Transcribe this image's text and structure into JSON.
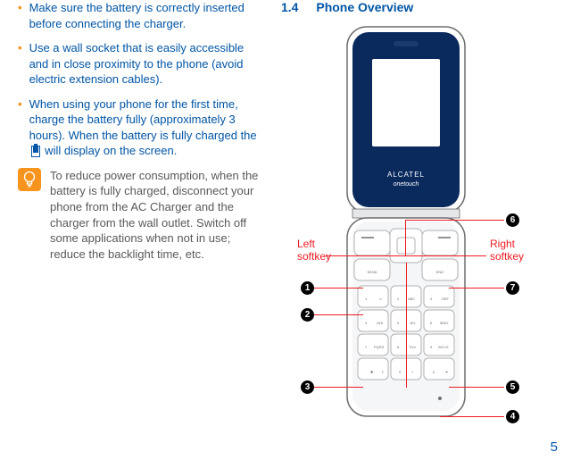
{
  "left": {
    "bullets": [
      "Make sure the battery is correctly inserted before connecting the charger.",
      "Use a wall socket that is easily accessible and in close proximity to the phone (avoid electric extension cables).",
      "When using your phone for the first time, charge the battery fully (approximately 3 hours). When the battery is fully charged the  will display on the screen."
    ],
    "bullet3_pre": "When using your phone for the first time, charge the battery fully (approximately 3 hours). When the battery is fully charged the ",
    "bullet3_post": " will display on the screen.",
    "tip": "To reduce power consumption, when the battery is fully charged, disconnect your phone from the AC Charger and the charger from the wall outlet. Switch off some applications when not in use; reduce the backlight time, etc."
  },
  "right": {
    "section_num": "1.4",
    "section_title": "Phone Overview",
    "brand": "ALCATEL",
    "brand_sub": "onetouch",
    "left_softkey": "Left softkey",
    "right_softkey": "Right softkey",
    "keys": {
      "send": "SEND",
      "end": "END",
      "k1": "1",
      "k2": "2 ABC",
      "k3": "3 DEF",
      "k4": "4 GHI",
      "k5": "5 JKL",
      "k6": "6 MNO",
      "k7": "7 PQRS",
      "k8": "8 TUV",
      "k9": "9 WXYZ",
      "kstar": "✱",
      "k0": "0 +",
      "khash": "#"
    },
    "callouts": {
      "c1": "1",
      "c2": "2",
      "c3": "3",
      "c4": "4",
      "c5": "5",
      "c6": "6",
      "c7": "7"
    }
  },
  "page_number": "5",
  "colors": {
    "blue": "#0055a5",
    "orange": "#f7941e",
    "grey": "#58595b",
    "red": "#ed1c24",
    "phone_blue": "#0a2a5e"
  }
}
